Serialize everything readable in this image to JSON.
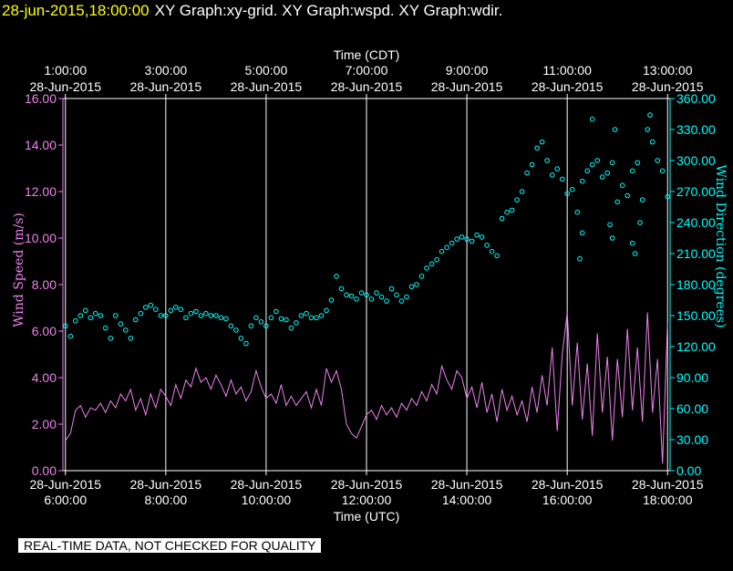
{
  "header": {
    "timestamp": "28-jun-2015,18:00:00",
    "graphs": "XY Graph:xy-grid.  XY Graph:wspd.  XY Graph:wdir."
  },
  "notice": "REAL-TIME DATA, NOT CHECKED FOR QUALITY",
  "colors": {
    "speed": "#ee82ee",
    "direction": "#00ffff",
    "axis": "#ffffff",
    "grid": "#ffffff"
  },
  "chart_data": {
    "type": "line",
    "xlabel_bottom": "Time (UTC)",
    "xlabel_top": "Time (CDT)",
    "ylabel_left": "Wind Speed (m/s)",
    "ylabel_right": "Wind Direction (degrees)",
    "x_range_utc_hours": [
      5.95,
      18.05
    ],
    "ylim_left": [
      0,
      16
    ],
    "ylim_right": [
      0,
      360
    ],
    "grid": "vertical",
    "bottom_ticks": [
      {
        "hour": 6,
        "date": "28-Jun-2015",
        "time": "6:00:00"
      },
      {
        "hour": 8,
        "date": "28-Jun-2015",
        "time": "8:00:00"
      },
      {
        "hour": 10,
        "date": "28-Jun-2015",
        "time": "10:00:00"
      },
      {
        "hour": 12,
        "date": "28-Jun-2015",
        "time": "12:00:00"
      },
      {
        "hour": 14,
        "date": "28-Jun-2015",
        "time": "14:00:00"
      },
      {
        "hour": 16,
        "date": "28-Jun-2015",
        "time": "16:00:00"
      },
      {
        "hour": 18,
        "date": "28-Jun-2015",
        "time": "18:00:00"
      }
    ],
    "top_ticks": [
      {
        "hour": 6,
        "time": "1:00:00",
        "date": "28-Jun-2015"
      },
      {
        "hour": 8,
        "time": "3:00:00",
        "date": "28-Jun-2015"
      },
      {
        "hour": 10,
        "time": "5:00:00",
        "date": "28-Jun-2015"
      },
      {
        "hour": 12,
        "time": "7:00:00",
        "date": "28-Jun-2015"
      },
      {
        "hour": 14,
        "time": "9:00:00",
        "date": "28-Jun-2015"
      },
      {
        "hour": 16,
        "time": "11:00:00",
        "date": "28-Jun-2015"
      },
      {
        "hour": 18,
        "time": "13:00:00",
        "date": "28-Jun-2015"
      }
    ],
    "left_ticks": [
      "0.00",
      "2.00",
      "4.00",
      "6.00",
      "8.00",
      "10.00",
      "12.00",
      "14.00",
      "16.00"
    ],
    "right_ticks": [
      "0.00",
      "30.00",
      "60.00",
      "90.00",
      "120.00",
      "150.00",
      "180.00",
      "210.00",
      "240.00",
      "270.00",
      "300.00",
      "330.00",
      "360.00"
    ],
    "series": [
      {
        "kind": "line",
        "axis": "left",
        "x": [
          6.0,
          6.1,
          6.2,
          6.3,
          6.4,
          6.5,
          6.6,
          6.7,
          6.8,
          6.9,
          7.0,
          7.1,
          7.2,
          7.3,
          7.4,
          7.5,
          7.6,
          7.7,
          7.8,
          7.9,
          8.0,
          8.1,
          8.2,
          8.3,
          8.4,
          8.5,
          8.6,
          8.7,
          8.8,
          8.9,
          9.0,
          9.1,
          9.2,
          9.3,
          9.4,
          9.5,
          9.6,
          9.7,
          9.8,
          9.9,
          10.0,
          10.1,
          10.2,
          10.3,
          10.4,
          10.5,
          10.6,
          10.7,
          10.8,
          10.9,
          11.0,
          11.1,
          11.2,
          11.3,
          11.4,
          11.5,
          11.6,
          11.7,
          11.8,
          11.9,
          12.0,
          12.1,
          12.2,
          12.3,
          12.4,
          12.5,
          12.6,
          12.7,
          12.8,
          12.9,
          13.0,
          13.1,
          13.2,
          13.3,
          13.4,
          13.5,
          13.6,
          13.7,
          13.8,
          13.9,
          14.0,
          14.1,
          14.2,
          14.3,
          14.4,
          14.5,
          14.6,
          14.7,
          14.8,
          14.9,
          15.0,
          15.1,
          15.2,
          15.3,
          15.4,
          15.5,
          15.6,
          15.7,
          15.8,
          15.9,
          16.0,
          16.1,
          16.2,
          16.3,
          16.4,
          16.5,
          16.6,
          16.7,
          16.8,
          16.9,
          17.0,
          17.1,
          17.2,
          17.3,
          17.4,
          17.5,
          17.6,
          17.7,
          17.8,
          17.9,
          18.0
        ],
        "values": [
          1.3,
          1.6,
          2.6,
          2.8,
          2.3,
          2.7,
          2.6,
          2.9,
          2.5,
          3.0,
          2.7,
          3.3,
          3.0,
          3.5,
          2.6,
          3.1,
          2.4,
          3.3,
          2.7,
          3.5,
          3.2,
          2.8,
          3.7,
          3.1,
          3.9,
          3.6,
          4.4,
          3.8,
          4.0,
          3.5,
          4.1,
          3.7,
          3.2,
          3.9,
          3.3,
          3.6,
          3.0,
          3.4,
          4.3,
          3.6,
          3.1,
          3.3,
          2.9,
          3.7,
          2.8,
          3.2,
          2.8,
          3.1,
          3.4,
          2.7,
          3.5,
          2.8,
          4.4,
          3.8,
          4.3,
          3.5,
          2.0,
          1.6,
          1.4,
          1.9,
          2.4,
          2.6,
          2.2,
          2.8,
          2.4,
          2.7,
          2.3,
          2.9,
          2.6,
          3.1,
          2.8,
          3.4,
          3.0,
          3.7,
          3.3,
          4.5,
          3.9,
          3.5,
          4.3,
          4.0,
          3.1,
          3.6,
          2.7,
          3.8,
          2.5,
          3.3,
          2.1,
          3.5,
          2.6,
          3.2,
          2.4,
          3.0,
          2.1,
          3.6,
          2.5,
          4.1,
          2.8,
          5.3,
          1.7,
          5.0,
          6.8,
          2.8,
          5.5,
          2.2,
          4.6,
          1.5,
          5.9,
          2.5,
          4.9,
          1.3,
          4.8,
          2.3,
          6.1,
          2.6,
          5.3,
          2.1,
          6.8,
          2.5,
          4.8,
          0.3,
          6.4
        ]
      },
      {
        "kind": "scatter",
        "axis": "right",
        "x": [
          6.0,
          6.1,
          6.2,
          6.3,
          6.4,
          6.5,
          6.6,
          6.7,
          6.8,
          6.9,
          7.0,
          7.1,
          7.2,
          7.3,
          7.4,
          7.5,
          7.6,
          7.7,
          7.8,
          7.9,
          8.0,
          8.1,
          8.2,
          8.3,
          8.4,
          8.5,
          8.6,
          8.7,
          8.8,
          8.9,
          9.0,
          9.1,
          9.2,
          9.3,
          9.4,
          9.5,
          9.6,
          9.7,
          9.8,
          9.9,
          10.0,
          10.1,
          10.2,
          10.3,
          10.4,
          10.5,
          10.6,
          10.7,
          10.8,
          10.9,
          11.0,
          11.1,
          11.2,
          11.3,
          11.4,
          11.5,
          11.6,
          11.7,
          11.8,
          11.9,
          12.0,
          12.1,
          12.2,
          12.3,
          12.4,
          12.5,
          12.6,
          12.7,
          12.8,
          12.9,
          13.0,
          13.1,
          13.2,
          13.3,
          13.4,
          13.5,
          13.6,
          13.7,
          13.8,
          13.9,
          14.0,
          14.1,
          14.2,
          14.3,
          14.4,
          14.5,
          14.6,
          14.7,
          14.8,
          14.9,
          15.0,
          15.1,
          15.2,
          15.3,
          15.4,
          15.5,
          15.6,
          15.7,
          15.8,
          15.9,
          16.0,
          16.1,
          16.2,
          16.3,
          16.4,
          16.5,
          16.6,
          16.7,
          16.8,
          16.9,
          17.0,
          17.1,
          17.2,
          17.3,
          17.4,
          17.5,
          17.6,
          17.7,
          17.8,
          17.9,
          18.0
        ],
        "values": [
          140,
          130,
          145,
          150,
          155,
          148,
          152,
          150,
          138,
          128,
          150,
          142,
          136,
          128,
          146,
          152,
          158,
          160,
          156,
          150,
          150,
          155,
          158,
          156,
          148,
          152,
          154,
          150,
          152,
          150,
          150,
          148,
          147,
          140,
          136,
          128,
          123,
          140,
          148,
          144,
          140,
          148,
          154,
          147,
          146,
          138,
          143,
          150,
          152,
          148,
          148,
          150,
          155,
          165,
          188,
          176,
          170,
          169,
          166,
          172,
          170,
          166,
          172,
          168,
          164,
          176,
          170,
          164,
          168,
          178,
          180,
          188,
          196,
          200,
          204,
          212,
          216,
          220,
          224,
          226,
          224,
          222,
          228,
          226,
          218,
          212,
          208,
          244,
          250,
          252,
          262,
          270,
          288,
          296,
          312,
          318,
          300,
          286,
          292,
          282,
          268,
          272,
          250,
          280,
          290,
          296,
          300,
          284,
          288,
          298,
          260,
          276,
          266,
          290,
          298,
          262,
          330,
          318,
          300,
          290,
          265
        ],
        "outliers": [
          {
            "x": 16.25,
            "y": 205
          },
          {
            "x": 16.3,
            "y": 230
          },
          {
            "x": 16.85,
            "y": 238
          },
          {
            "x": 16.9,
            "y": 225
          },
          {
            "x": 17.3,
            "y": 220
          },
          {
            "x": 17.35,
            "y": 210
          },
          {
            "x": 17.45,
            "y": 240
          },
          {
            "x": 16.5,
            "y": 340
          },
          {
            "x": 16.95,
            "y": 330
          },
          {
            "x": 17.65,
            "y": 344
          }
        ]
      }
    ]
  }
}
